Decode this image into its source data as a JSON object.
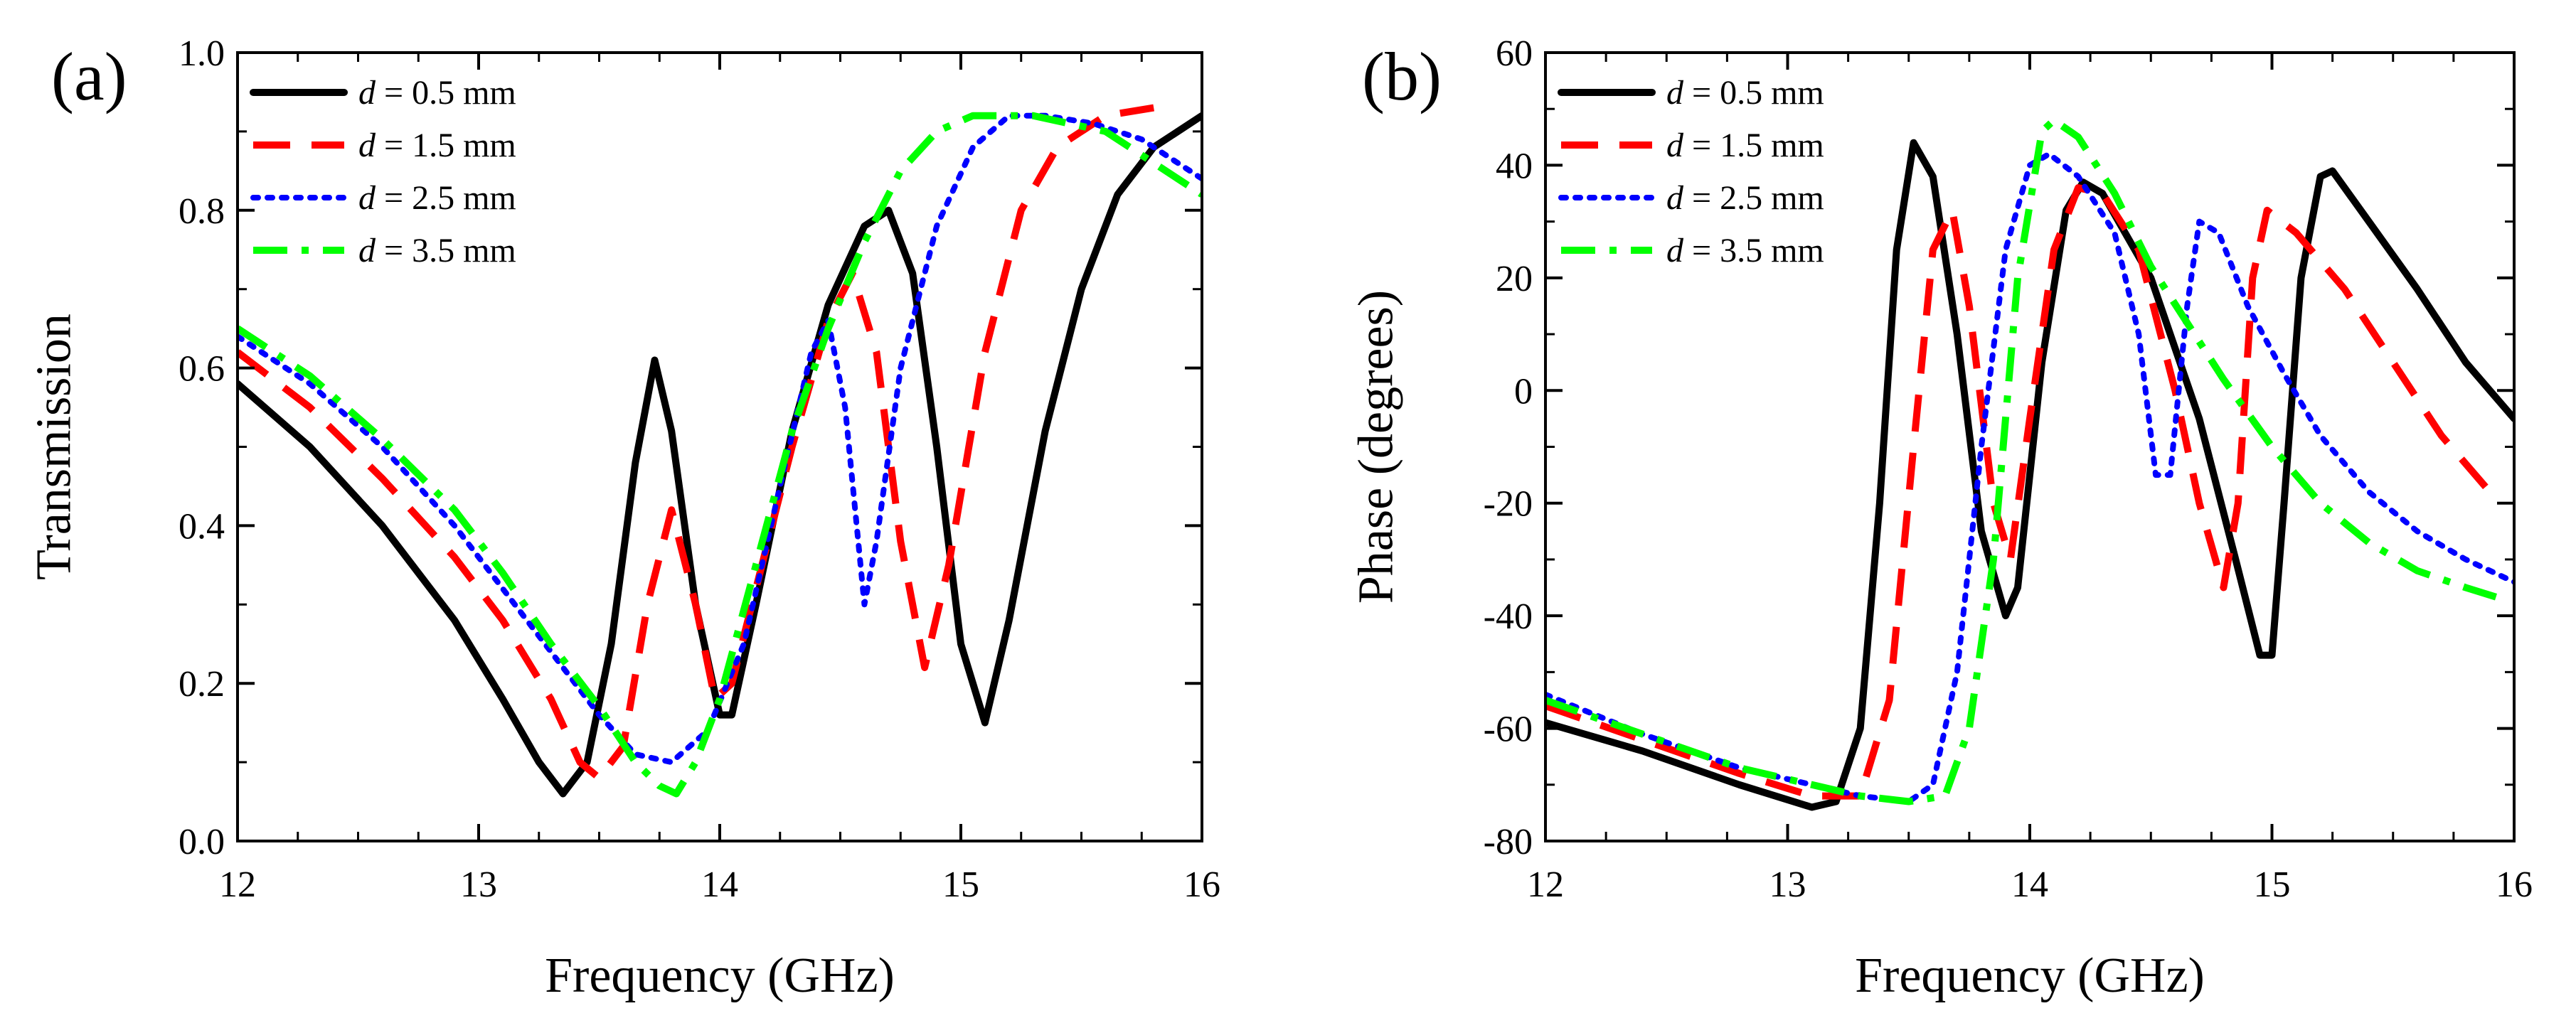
{
  "chart_data": [
    {
      "type": "line",
      "panel_label": "(a)",
      "xlabel": "Frequency (GHz)",
      "ylabel": "Transmission",
      "xlim": [
        12,
        16
      ],
      "ylim": [
        0.0,
        1.0
      ],
      "xticks": [
        12,
        13,
        14,
        15,
        16
      ],
      "xtick_labels": [
        "12",
        "13",
        "14",
        "15",
        "16"
      ],
      "yticks": [
        0.0,
        0.2,
        0.4,
        0.6,
        0.8,
        1.0
      ],
      "ytick_labels": [
        "0.0",
        "0.2",
        "0.4",
        "0.6",
        "0.8",
        "1.0"
      ],
      "grid": false,
      "legend_position": "top-left",
      "series": [
        {
          "name": "d = 0.5 mm",
          "var": "d",
          "rest": " = 0.5 mm",
          "color": "#000000",
          "style": "solid",
          "points": [
            [
              12.0,
              0.58
            ],
            [
              12.3,
              0.5
            ],
            [
              12.6,
              0.4
            ],
            [
              12.9,
              0.28
            ],
            [
              13.1,
              0.18
            ],
            [
              13.25,
              0.1
            ],
            [
              13.35,
              0.06
            ],
            [
              13.45,
              0.1
            ],
            [
              13.55,
              0.25
            ],
            [
              13.65,
              0.48
            ],
            [
              13.73,
              0.61
            ],
            [
              13.8,
              0.52
            ],
            [
              13.9,
              0.3
            ],
            [
              14.0,
              0.16
            ],
            [
              14.05,
              0.16
            ],
            [
              14.15,
              0.3
            ],
            [
              14.3,
              0.52
            ],
            [
              14.45,
              0.68
            ],
            [
              14.6,
              0.78
            ],
            [
              14.7,
              0.8
            ],
            [
              14.8,
              0.72
            ],
            [
              14.9,
              0.5
            ],
            [
              15.0,
              0.25
            ],
            [
              15.1,
              0.15
            ],
            [
              15.2,
              0.28
            ],
            [
              15.35,
              0.52
            ],
            [
              15.5,
              0.7
            ],
            [
              15.65,
              0.82
            ],
            [
              15.8,
              0.88
            ],
            [
              16.0,
              0.92
            ]
          ]
        },
        {
          "name": "d = 1.5 mm",
          "var": "d",
          "rest": " = 1.5 mm",
          "color": "#ff0000",
          "style": "dashed",
          "points": [
            [
              12.0,
              0.62
            ],
            [
              12.3,
              0.55
            ],
            [
              12.6,
              0.46
            ],
            [
              12.9,
              0.36
            ],
            [
              13.1,
              0.28
            ],
            [
              13.3,
              0.18
            ],
            [
              13.42,
              0.1
            ],
            [
              13.5,
              0.08
            ],
            [
              13.6,
              0.12
            ],
            [
              13.7,
              0.3
            ],
            [
              13.8,
              0.42
            ],
            [
              13.9,
              0.3
            ],
            [
              13.98,
              0.18
            ],
            [
              14.05,
              0.2
            ],
            [
              14.15,
              0.32
            ],
            [
              14.3,
              0.5
            ],
            [
              14.45,
              0.66
            ],
            [
              14.55,
              0.72
            ],
            [
              14.65,
              0.62
            ],
            [
              14.75,
              0.38
            ],
            [
              14.85,
              0.22
            ],
            [
              14.95,
              0.35
            ],
            [
              15.1,
              0.62
            ],
            [
              15.25,
              0.8
            ],
            [
              15.4,
              0.88
            ],
            [
              15.6,
              0.92
            ],
            [
              15.8,
              0.93
            ]
          ]
        },
        {
          "name": "d = 2.5 mm",
          "var": "d",
          "rest": " = 2.5 mm",
          "color": "#0000ff",
          "style": "dotted",
          "points": [
            [
              12.0,
              0.64
            ],
            [
              12.3,
              0.58
            ],
            [
              12.6,
              0.5
            ],
            [
              12.9,
              0.4
            ],
            [
              13.1,
              0.32
            ],
            [
              13.3,
              0.24
            ],
            [
              13.5,
              0.16
            ],
            [
              13.65,
              0.11
            ],
            [
              13.8,
              0.1
            ],
            [
              13.95,
              0.14
            ],
            [
              14.1,
              0.25
            ],
            [
              14.25,
              0.45
            ],
            [
              14.38,
              0.62
            ],
            [
              14.45,
              0.66
            ],
            [
              14.52,
              0.55
            ],
            [
              14.6,
              0.3
            ],
            [
              14.65,
              0.38
            ],
            [
              14.75,
              0.6
            ],
            [
              14.9,
              0.78
            ],
            [
              15.05,
              0.88
            ],
            [
              15.2,
              0.92
            ],
            [
              15.35,
              0.92
            ],
            [
              15.55,
              0.91
            ],
            [
              15.75,
              0.89
            ],
            [
              16.0,
              0.84
            ]
          ]
        },
        {
          "name": "d = 3.5 mm",
          "var": "d",
          "rest": " = 3.5 mm",
          "color": "#00ff00",
          "style": "dashdot",
          "points": [
            [
              12.0,
              0.65
            ],
            [
              12.3,
              0.59
            ],
            [
              12.6,
              0.51
            ],
            [
              12.9,
              0.42
            ],
            [
              13.1,
              0.34
            ],
            [
              13.3,
              0.25
            ],
            [
              13.5,
              0.17
            ],
            [
              13.65,
              0.1
            ],
            [
              13.75,
              0.07
            ],
            [
              13.82,
              0.06
            ],
            [
              13.9,
              0.1
            ],
            [
              14.0,
              0.18
            ],
            [
              14.15,
              0.35
            ],
            [
              14.3,
              0.52
            ],
            [
              14.45,
              0.65
            ],
            [
              14.6,
              0.76
            ],
            [
              14.75,
              0.85
            ],
            [
              14.9,
              0.9
            ],
            [
              15.05,
              0.92
            ],
            [
              15.3,
              0.92
            ],
            [
              15.6,
              0.9
            ],
            [
              16.0,
              0.82
            ]
          ]
        }
      ]
    },
    {
      "type": "line",
      "panel_label": "(b)",
      "xlabel": "Frequency (GHz)",
      "ylabel": "Phase (degrees)",
      "xlim": [
        12,
        16
      ],
      "ylim": [
        -80,
        60
      ],
      "xticks": [
        12,
        13,
        14,
        15,
        16
      ],
      "xtick_labels": [
        "12",
        "13",
        "14",
        "15",
        "16"
      ],
      "yticks": [
        -80,
        -60,
        -40,
        -20,
        0,
        20,
        40,
        60
      ],
      "ytick_labels": [
        "-80",
        "-60",
        "-40",
        "-20",
        "0",
        "20",
        "40",
        "60"
      ],
      "grid": false,
      "legend_position": "top-left",
      "series": [
        {
          "name": "d = 0.5 mm",
          "var": "d",
          "rest": " = 0.5 mm",
          "color": "#000000",
          "style": "solid",
          "points": [
            [
              12.0,
              -59
            ],
            [
              12.4,
              -64
            ],
            [
              12.8,
              -70
            ],
            [
              13.1,
              -74
            ],
            [
              13.2,
              -73
            ],
            [
              13.3,
              -60
            ],
            [
              13.38,
              -20
            ],
            [
              13.45,
              25
            ],
            [
              13.52,
              44
            ],
            [
              13.6,
              38
            ],
            [
              13.7,
              10
            ],
            [
              13.8,
              -25
            ],
            [
              13.9,
              -40
            ],
            [
              13.95,
              -35
            ],
            [
              14.05,
              5
            ],
            [
              14.15,
              32
            ],
            [
              14.22,
              37
            ],
            [
              14.3,
              35
            ],
            [
              14.5,
              20
            ],
            [
              14.7,
              -5
            ],
            [
              14.85,
              -30
            ],
            [
              14.95,
              -47
            ],
            [
              15.0,
              -47
            ],
            [
              15.05,
              -20
            ],
            [
              15.12,
              20
            ],
            [
              15.2,
              38
            ],
            [
              15.25,
              39
            ],
            [
              15.4,
              30
            ],
            [
              15.6,
              18
            ],
            [
              15.8,
              5
            ],
            [
              16.0,
              -5
            ]
          ]
        },
        {
          "name": "d = 1.5 mm",
          "var": "d",
          "rest": " = 1.5 mm",
          "color": "#ff0000",
          "style": "dashed",
          "points": [
            [
              12.0,
              -56
            ],
            [
              12.4,
              -62
            ],
            [
              12.8,
              -68
            ],
            [
              13.1,
              -72
            ],
            [
              13.3,
              -72
            ],
            [
              13.42,
              -55
            ],
            [
              13.52,
              -10
            ],
            [
              13.6,
              25
            ],
            [
              13.68,
              32
            ],
            [
              13.75,
              15
            ],
            [
              13.85,
              -20
            ],
            [
              13.92,
              -30
            ],
            [
              14.0,
              -5
            ],
            [
              14.1,
              25
            ],
            [
              14.2,
              36
            ],
            [
              14.3,
              35
            ],
            [
              14.45,
              25
            ],
            [
              14.6,
              0
            ],
            [
              14.7,
              -20
            ],
            [
              14.8,
              -35
            ],
            [
              14.86,
              -20
            ],
            [
              14.92,
              20
            ],
            [
              14.98,
              32
            ],
            [
              15.1,
              28
            ],
            [
              15.3,
              18
            ],
            [
              15.5,
              5
            ],
            [
              15.7,
              -8
            ],
            [
              15.9,
              -18
            ]
          ]
        },
        {
          "name": "d = 2.5 mm",
          "var": "d",
          "rest": " = 2.5 mm",
          "color": "#0000ff",
          "style": "dotted",
          "points": [
            [
              12.0,
              -54
            ],
            [
              12.4,
              -61
            ],
            [
              12.8,
              -67
            ],
            [
              13.1,
              -70
            ],
            [
              13.3,
              -72
            ],
            [
              13.5,
              -73
            ],
            [
              13.6,
              -70
            ],
            [
              13.7,
              -50
            ],
            [
              13.8,
              -10
            ],
            [
              13.9,
              25
            ],
            [
              14.0,
              40
            ],
            [
              14.08,
              42
            ],
            [
              14.2,
              38
            ],
            [
              14.35,
              28
            ],
            [
              14.45,
              10
            ],
            [
              14.52,
              -15
            ],
            [
              14.58,
              -15
            ],
            [
              14.65,
              15
            ],
            [
              14.7,
              30
            ],
            [
              14.78,
              28
            ],
            [
              14.9,
              15
            ],
            [
              15.05,
              3
            ],
            [
              15.2,
              -8
            ],
            [
              15.4,
              -18
            ],
            [
              15.6,
              -25
            ],
            [
              15.8,
              -30
            ],
            [
              16.0,
              -34
            ]
          ]
        },
        {
          "name": "d = 3.5 mm",
          "var": "d",
          "rest": " = 3.5 mm",
          "color": "#00ff00",
          "style": "dashdot",
          "points": [
            [
              12.0,
              -55
            ],
            [
              12.4,
              -61
            ],
            [
              12.8,
              -67
            ],
            [
              13.1,
              -70
            ],
            [
              13.3,
              -72
            ],
            [
              13.5,
              -73
            ],
            [
              13.65,
              -72
            ],
            [
              13.75,
              -60
            ],
            [
              13.85,
              -30
            ],
            [
              13.95,
              20
            ],
            [
              14.05,
              46
            ],
            [
              14.1,
              48
            ],
            [
              14.2,
              45
            ],
            [
              14.35,
              35
            ],
            [
              14.5,
              22
            ],
            [
              14.65,
              12
            ],
            [
              14.8,
              2
            ],
            [
              15.0,
              -10
            ],
            [
              15.2,
              -20
            ],
            [
              15.4,
              -27
            ],
            [
              15.6,
              -32
            ],
            [
              15.8,
              -35
            ],
            [
              15.95,
              -37
            ]
          ]
        }
      ]
    }
  ]
}
